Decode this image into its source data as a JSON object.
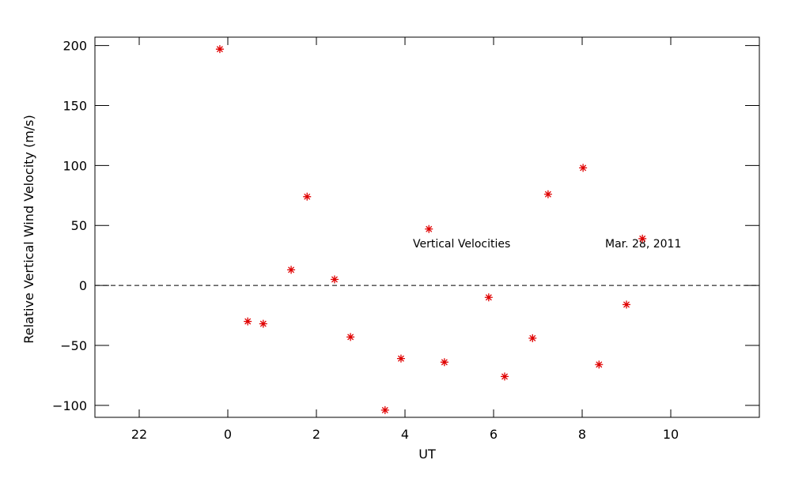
{
  "chart_data": {
    "type": "scatter",
    "x_label": "UT",
    "y_label": "Relative Vertical Wind Velocity (m/s)",
    "annotations": [
      "Vertical Velocities",
      "Mar. 28, 2011"
    ],
    "color": "#e00000",
    "reference_line": 0,
    "x": [
      -0.18,
      0.45,
      0.8,
      1.43,
      1.79,
      2.41,
      2.77,
      3.55,
      3.91,
      4.54,
      4.89,
      5.89,
      6.25,
      6.88,
      7.23,
      8.02,
      8.38,
      9.0,
      9.36
    ],
    "values": [
      197,
      -30,
      -32,
      13,
      74,
      5,
      -43,
      -104,
      -61,
      47,
      -64,
      -10,
      -76,
      -44,
      76,
      98,
      -66,
      -16,
      39
    ],
    "xlim": [
      -3,
      12
    ],
    "xticks": [
      {
        "value": -2,
        "label": "22"
      },
      0,
      2,
      4,
      6,
      8,
      10
    ],
    "ylim": [
      -110,
      207
    ],
    "yticks": [
      {
        "value": -100,
        "label": "−100"
      },
      {
        "value": -50,
        "label": "−50"
      },
      0,
      50,
      100,
      150,
      200
    ]
  }
}
